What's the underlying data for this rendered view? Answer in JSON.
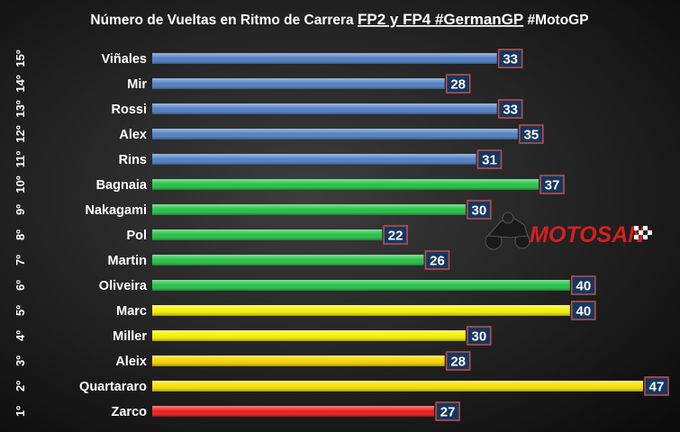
{
  "chart_data": {
    "type": "bar",
    "orientation": "horizontal",
    "title": {
      "part1": "Número de Vueltas en Ritmo de Carrera ",
      "part2": "FP2 y FP4 #GermanGP",
      "part3": " #MotoGP"
    },
    "xlim": [
      0,
      47
    ],
    "grid": false,
    "legend": "none",
    "rows": [
      {
        "rank": "15º",
        "rider": "Viñales",
        "value": 33,
        "color": "#4f7fc4"
      },
      {
        "rank": "14º",
        "rider": "Mir",
        "value": 28,
        "color": "#4f7fc4"
      },
      {
        "rank": "13º",
        "rider": "Rossi",
        "value": 33,
        "color": "#4f7fc4"
      },
      {
        "rank": "12º",
        "rider": "Alex",
        "value": 35,
        "color": "#4f7fc4"
      },
      {
        "rank": "11º",
        "rider": "Rins",
        "value": 31,
        "color": "#4f7fc4"
      },
      {
        "rank": "10º",
        "rider": "Bagnaia",
        "value": 37,
        "color": "#22c246"
      },
      {
        "rank": "9º",
        "rider": "Nakagami",
        "value": 30,
        "color": "#22c246"
      },
      {
        "rank": "8º",
        "rider": "Pol",
        "value": 22,
        "color": "#22c246"
      },
      {
        "rank": "7º",
        "rider": "Martin",
        "value": 26,
        "color": "#22c246"
      },
      {
        "rank": "6º",
        "rider": "Oliveira",
        "value": 40,
        "color": "#22c246"
      },
      {
        "rank": "5º",
        "rider": "Marc",
        "value": 40,
        "color": "#f4f000"
      },
      {
        "rank": "4º",
        "rider": "Miller",
        "value": 30,
        "color": "#f4f000"
      },
      {
        "rank": "3º",
        "rider": "Aleix",
        "value": 28,
        "color": "#f4d400"
      },
      {
        "rank": "2º",
        "rider": "Quartararo",
        "value": 47,
        "color": "#f4e000"
      },
      {
        "rank": "1º",
        "rider": "Zarco",
        "value": 27,
        "color": "#f01818"
      }
    ],
    "value_box_color": "#17375e",
    "value_box_border": "#c0504d"
  },
  "logo": {
    "text": "MOTOSAN",
    "icon": "motorcycle-rider-icon",
    "color": "#d42020"
  }
}
